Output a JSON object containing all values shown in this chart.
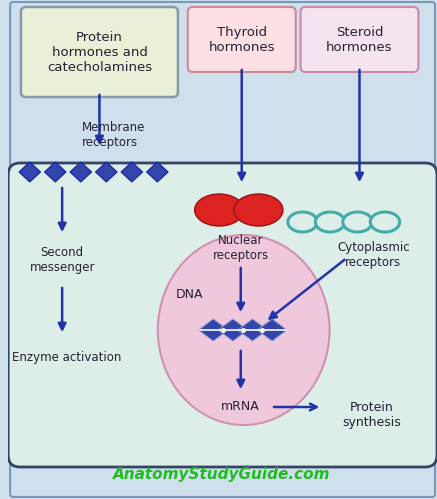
{
  "bg_color": "#cfe0ec",
  "cell_bg": "#ddeee8",
  "outer_bg": "#cfe0ec",
  "title_text": "AnatomyStudyGuide.com",
  "title_color": "#22bb22",
  "box1_text": "Protein\nhormones and\ncatecholamines",
  "box1_facecolor": "#e8f0d8",
  "box1_edgecolor": "#8899aa",
  "box2_text": "Thyroid\nhormones",
  "box2_facecolor": "#fce0e4",
  "box2_edgecolor": "#cc8899",
  "box3_text": "Steroid\nhormones",
  "box3_facecolor": "#f4e4ef",
  "box3_edgecolor": "#cc88aa",
  "arrow_color": "#2233aa",
  "membrane_receptor_color": "#3344aa",
  "nuclear_receptor_color": "#dd2222",
  "cytoplasmic_receptor_color": "#44aaaa",
  "dna_color": "#3344aa",
  "nucleus_facecolor": "#f0c8dc",
  "nucleus_edgecolor": "#d090b0",
  "font_color": "#222233"
}
